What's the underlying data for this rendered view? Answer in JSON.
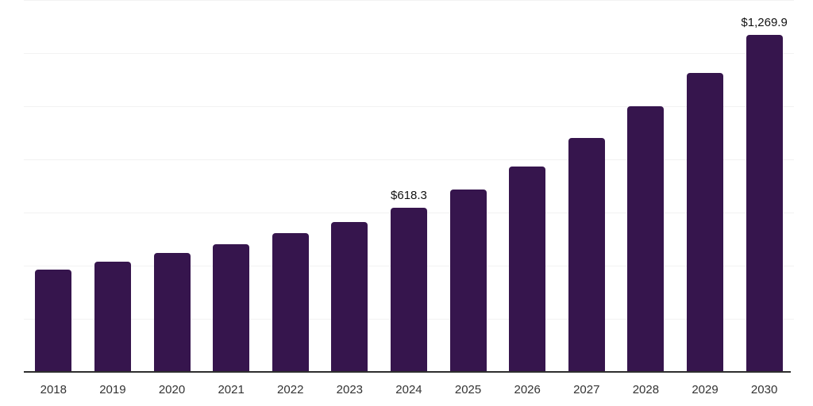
{
  "chart_data": {
    "type": "bar",
    "title": "",
    "xlabel": "",
    "ylabel": "",
    "categories": [
      "2018",
      "2019",
      "2020",
      "2021",
      "2022",
      "2023",
      "2024",
      "2025",
      "2026",
      "2027",
      "2028",
      "2029",
      "2030"
    ],
    "values": [
      385,
      415,
      448,
      481,
      522,
      564,
      618.3,
      687,
      773,
      881,
      1000,
      1125,
      1269.9
    ],
    "data_labels": [
      {
        "category": "2024",
        "text": "$618.3"
      },
      {
        "category": "2030",
        "text": "$1,269.9"
      }
    ],
    "ylim": [
      0,
      1400
    ],
    "gridline_step": 200,
    "grid": "horizontal",
    "legend": "none",
    "y_axis_labels_visible": false
  },
  "colors": {
    "bar": "#36154D",
    "gridline": "#F2F2F2",
    "axis_line": "#2E2E2E",
    "tick_label": "#333333",
    "data_label": "#111111",
    "background": "#FFFFFF"
  }
}
